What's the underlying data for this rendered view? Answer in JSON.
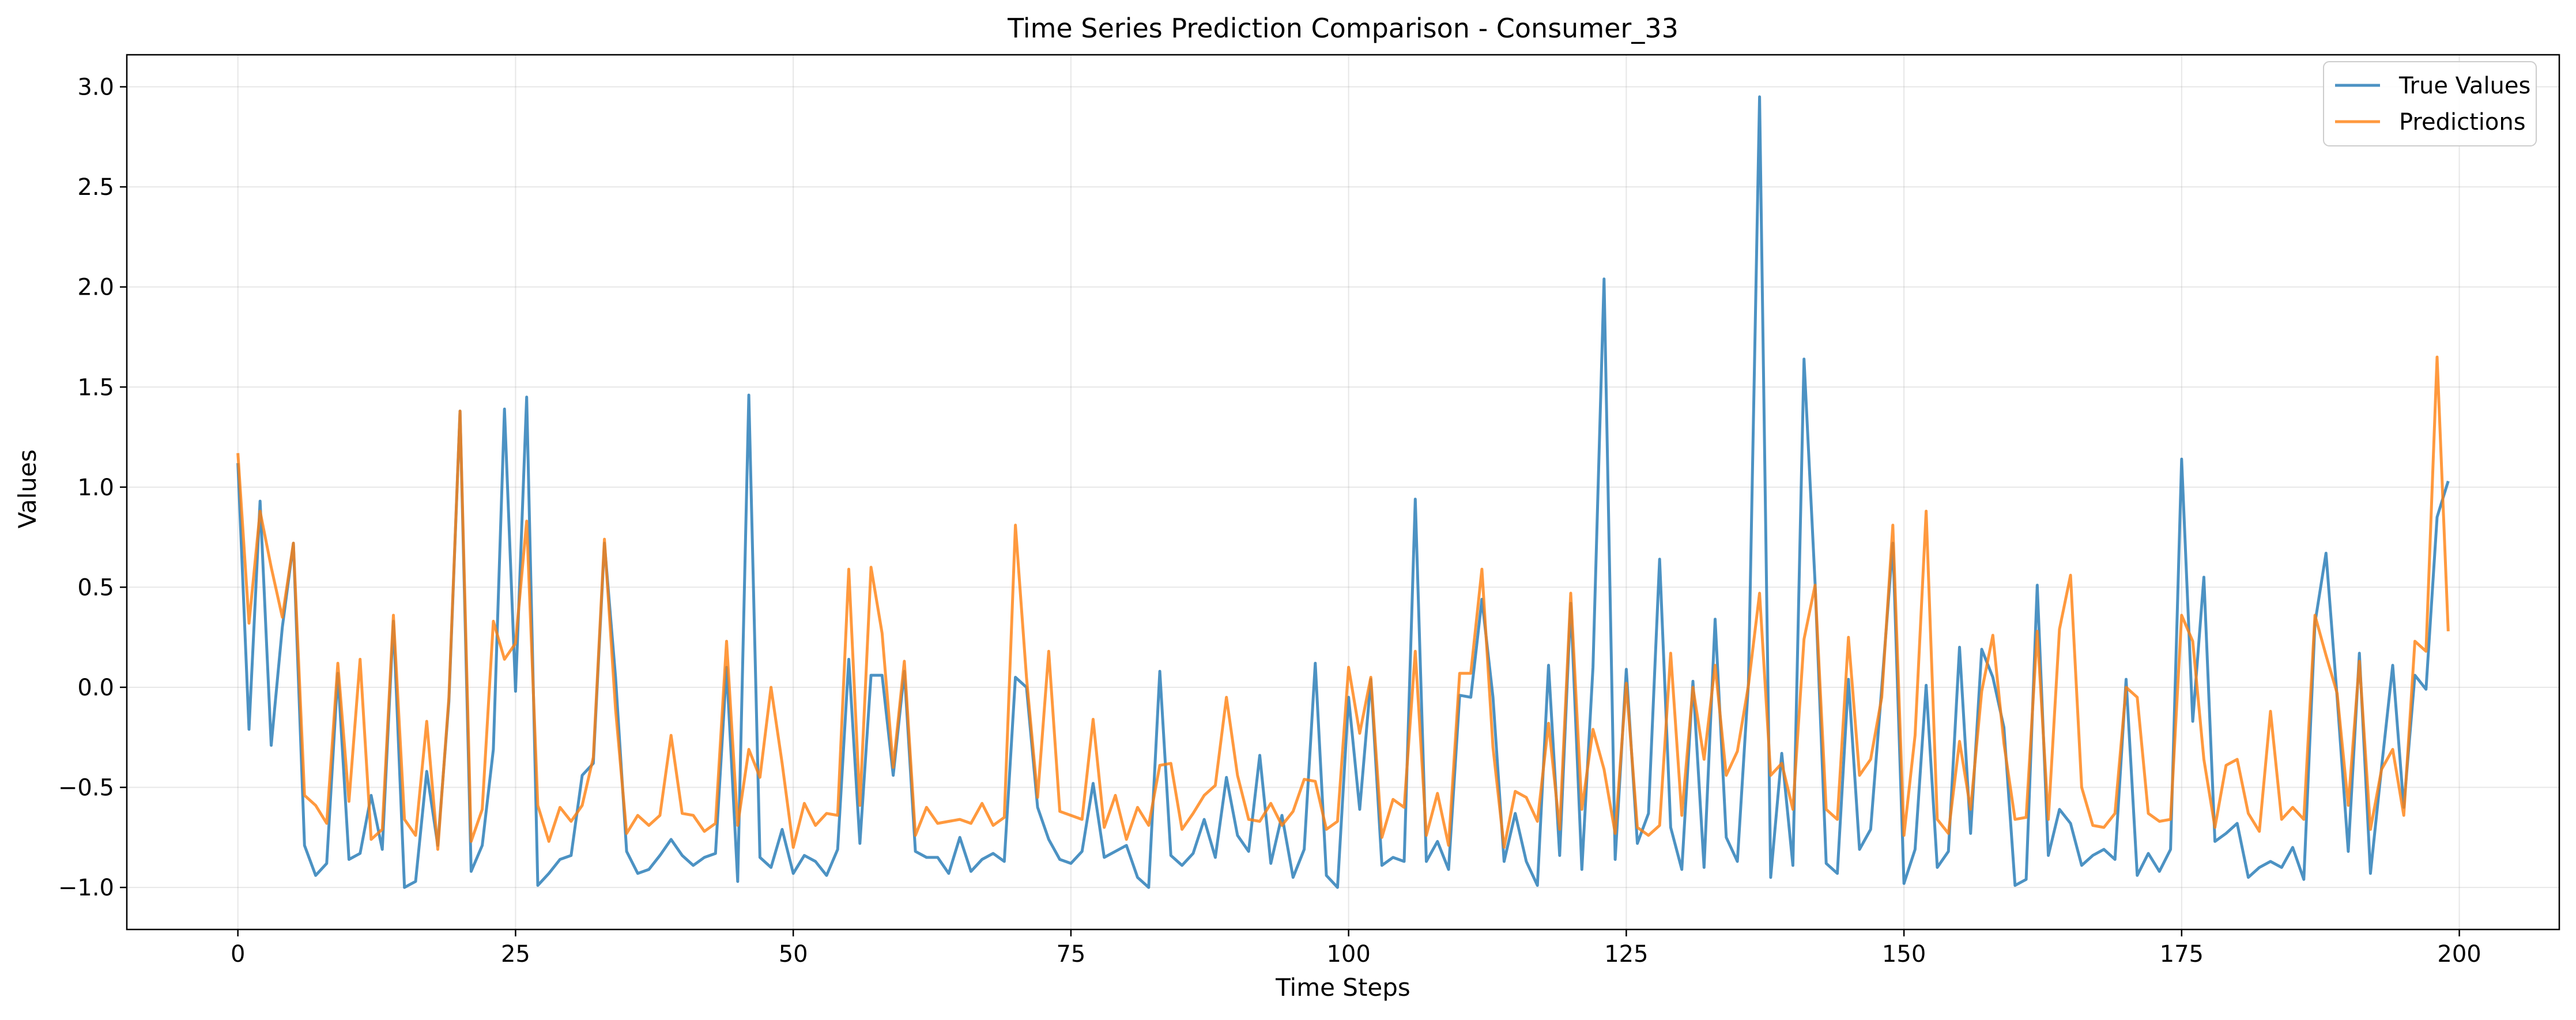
{
  "chart_data": {
    "type": "line",
    "title": "Time Series Prediction Comparison - Consumer_33",
    "xlabel": "Time Steps",
    "ylabel": "Values",
    "xlim": [
      -10,
      209
    ],
    "ylim": [
      -1.21,
      3.16
    ],
    "xticks": [
      0,
      25,
      50,
      75,
      100,
      125,
      150,
      175,
      200
    ],
    "yticks": [
      -1.0,
      -0.5,
      0.0,
      0.5,
      1.0,
      1.5,
      2.0,
      2.5,
      3.0
    ],
    "xtick_labels": [
      "0",
      "25",
      "50",
      "75",
      "100",
      "125",
      "150",
      "175",
      "200"
    ],
    "ytick_labels": [
      "−1.0",
      "−0.5",
      "0.0",
      "0.5",
      "1.0",
      "1.5",
      "2.0",
      "2.5",
      "3.0"
    ],
    "grid": true,
    "legend_position": "top-right",
    "series": [
      {
        "name": "True Values",
        "color": "#1f77b4",
        "values": [
          1.12,
          -0.21,
          0.93,
          -0.29,
          0.3,
          0.72,
          -0.79,
          -0.94,
          -0.88,
          0.07,
          -0.86,
          -0.83,
          -0.54,
          -0.81,
          0.33,
          -1.0,
          -0.97,
          -0.42,
          -0.79,
          -0.07,
          1.38,
          -0.92,
          -0.79,
          -0.31,
          1.39,
          -0.02,
          1.45,
          -0.99,
          -0.93,
          -0.86,
          -0.84,
          -0.44,
          -0.38,
          0.72,
          0.05,
          -0.82,
          -0.93,
          -0.91,
          -0.84,
          -0.76,
          -0.84,
          -0.89,
          -0.85,
          -0.83,
          0.1,
          -0.97,
          1.46,
          -0.85,
          -0.9,
          -0.71,
          -0.93,
          -0.84,
          -0.87,
          -0.94,
          -0.81,
          0.14,
          -0.78,
          0.06,
          0.06,
          -0.44,
          0.08,
          -0.82,
          -0.85,
          -0.85,
          -0.93,
          -0.75,
          -0.92,
          -0.86,
          -0.83,
          -0.87,
          0.05,
          0.0,
          -0.6,
          -0.76,
          -0.86,
          -0.88,
          -0.82,
          -0.48,
          -0.85,
          -0.82,
          -0.79,
          -0.95,
          -1.0,
          0.08,
          -0.84,
          -0.89,
          -0.83,
          -0.66,
          -0.85,
          -0.45,
          -0.74,
          -0.82,
          -0.34,
          -0.88,
          -0.64,
          -0.95,
          -0.81,
          0.12,
          -0.94,
          -1.0,
          -0.05,
          -0.61,
          0.04,
          -0.89,
          -0.85,
          -0.87,
          0.94,
          -0.87,
          -0.77,
          -0.91,
          -0.04,
          -0.05,
          0.44,
          -0.05,
          -0.87,
          -0.63,
          -0.87,
          -0.99,
          0.11,
          -0.84,
          0.42,
          -0.91,
          0.1,
          2.04,
          -0.86,
          0.09,
          -0.78,
          -0.63,
          0.64,
          -0.7,
          -0.91,
          0.03,
          -0.9,
          0.34,
          -0.75,
          -0.87,
          0.02,
          2.95,
          -0.95,
          -0.33,
          -0.89,
          1.64,
          0.52,
          -0.88,
          -0.93,
          0.04,
          -0.81,
          -0.71,
          0.0,
          0.72,
          -0.98,
          -0.81,
          0.01,
          -0.9,
          -0.82,
          0.2,
          -0.73,
          0.19,
          0.05,
          -0.2,
          -0.99,
          -0.96,
          0.51,
          -0.84,
          -0.61,
          -0.68,
          -0.89,
          -0.84,
          -0.81,
          -0.86,
          0.04,
          -0.94,
          -0.83,
          -0.92,
          -0.81,
          1.14,
          -0.17,
          0.55,
          -0.77,
          -0.73,
          -0.68,
          -0.95,
          -0.9,
          -0.87,
          -0.9,
          -0.8,
          -0.96,
          0.32,
          0.67,
          -0.05,
          -0.82,
          0.17,
          -0.93,
          -0.4,
          0.11,
          -0.6,
          0.06,
          -0.01,
          0.85,
          1.03
        ]
      },
      {
        "name": "Predictions",
        "color": "#ff7f0e",
        "values": [
          1.17,
          0.32,
          0.88,
          0.6,
          0.35,
          0.72,
          -0.54,
          -0.59,
          -0.68,
          0.12,
          -0.57,
          0.14,
          -0.76,
          -0.71,
          0.36,
          -0.66,
          -0.74,
          -0.17,
          -0.81,
          -0.05,
          1.38,
          -0.77,
          -0.61,
          0.33,
          0.14,
          0.22,
          0.83,
          -0.59,
          -0.77,
          -0.6,
          -0.67,
          -0.59,
          -0.35,
          0.74,
          -0.11,
          -0.73,
          -0.64,
          -0.69,
          -0.64,
          -0.24,
          -0.63,
          -0.64,
          -0.72,
          -0.68,
          0.23,
          -0.69,
          -0.31,
          -0.45,
          0.0,
          -0.38,
          -0.8,
          -0.58,
          -0.69,
          -0.63,
          -0.64,
          0.59,
          -0.59,
          0.6,
          0.27,
          -0.4,
          0.13,
          -0.74,
          -0.6,
          -0.68,
          -0.67,
          -0.66,
          -0.68,
          -0.58,
          -0.69,
          -0.65,
          0.81,
          0.05,
          -0.55,
          0.18,
          -0.62,
          -0.64,
          -0.66,
          -0.16,
          -0.7,
          -0.54,
          -0.76,
          -0.6,
          -0.69,
          -0.39,
          -0.38,
          -0.71,
          -0.63,
          -0.54,
          -0.49,
          -0.05,
          -0.44,
          -0.66,
          -0.67,
          -0.58,
          -0.69,
          -0.62,
          -0.46,
          -0.47,
          -0.71,
          -0.67,
          0.1,
          -0.23,
          0.05,
          -0.75,
          -0.56,
          -0.6,
          0.18,
          -0.74,
          -0.53,
          -0.79,
          0.07,
          0.07,
          0.59,
          -0.3,
          -0.8,
          -0.52,
          -0.55,
          -0.67,
          -0.18,
          -0.71,
          0.47,
          -0.61,
          -0.21,
          -0.41,
          -0.73,
          0.02,
          -0.7,
          -0.74,
          -0.69,
          0.17,
          -0.64,
          0.0,
          -0.36,
          0.11,
          -0.44,
          -0.32,
          0.01,
          0.47,
          -0.44,
          -0.38,
          -0.61,
          0.24,
          0.51,
          -0.61,
          -0.66,
          0.25,
          -0.44,
          -0.36,
          -0.05,
          0.81,
          -0.74,
          -0.24,
          0.88,
          -0.66,
          -0.73,
          -0.27,
          -0.61,
          -0.02,
          0.26,
          -0.28,
          -0.66,
          -0.65,
          0.28,
          -0.66,
          0.29,
          0.56,
          -0.5,
          -0.69,
          -0.7,
          -0.63,
          0.0,
          -0.05,
          -0.63,
          -0.67,
          -0.66,
          0.36,
          0.23,
          -0.36,
          -0.7,
          -0.39,
          -0.36,
          -0.63,
          -0.72,
          -0.12,
          -0.66,
          -0.6,
          -0.66,
          0.36,
          0.16,
          -0.03,
          -0.59,
          0.13,
          -0.71,
          -0.41,
          -0.31,
          -0.64,
          0.23,
          0.18,
          1.65,
          0.28
        ]
      }
    ]
  }
}
